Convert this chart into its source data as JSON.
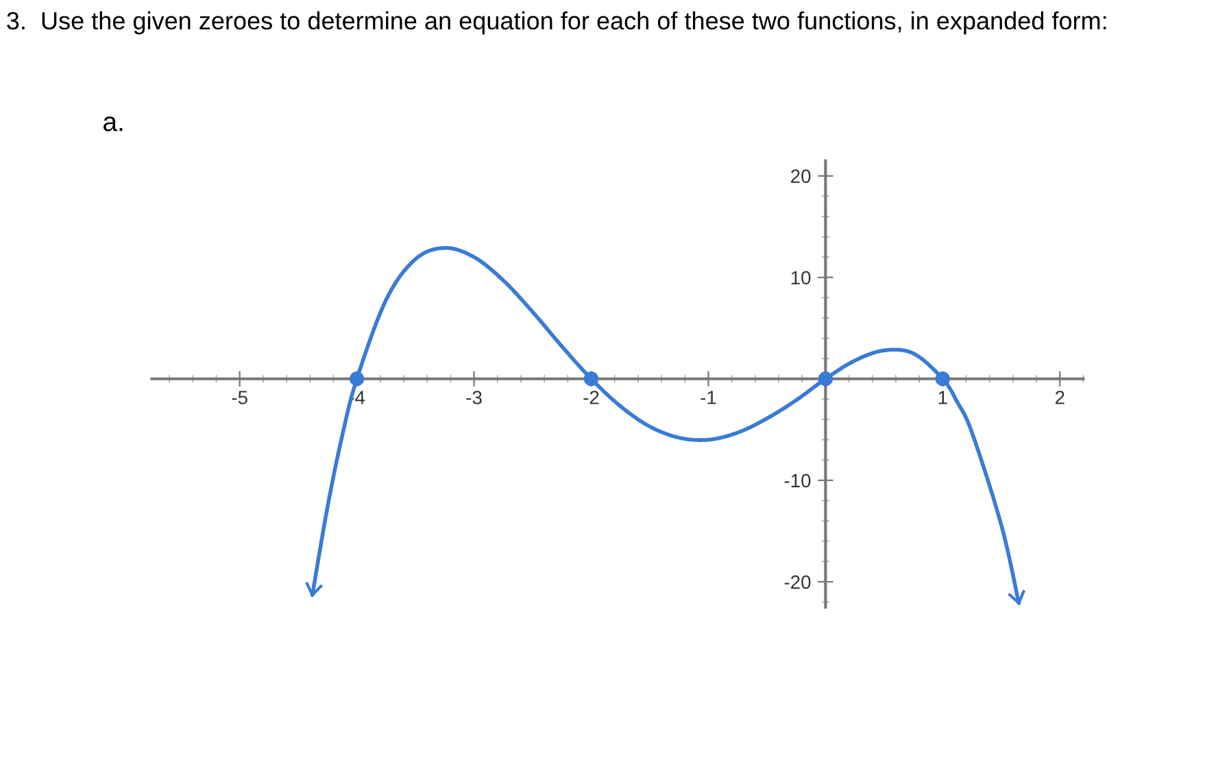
{
  "chart_data": {
    "type": "line",
    "title": "3.  Use the given zeroes to determine an equation for each of these two functions, in expanded form:",
    "annotations": [
      "a."
    ],
    "xlim": [
      -5.75,
      2.2
    ],
    "ylim": [
      -22.5,
      21.5
    ],
    "xticks": [
      -5,
      -4,
      -3,
      -2,
      -1,
      1,
      2
    ],
    "yticks": [
      -20,
      -10,
      10,
      20
    ],
    "series": [
      {
        "color": "#3a7bd5",
        "x": [
          -4.38,
          -4.25,
          -4.125,
          -4,
          -3.75,
          -3.5,
          -3.25,
          -3,
          -2.75,
          -2.5,
          -2.25,
          -2,
          -1.75,
          -1.5,
          -1.25,
          -1,
          -0.75,
          -0.5,
          -0.25,
          0,
          0.25,
          0.5,
          0.75,
          1,
          1.125,
          1.25,
          1.5,
          1.65
        ],
        "values": [
          -21.3,
          -12.6,
          -5.6,
          0,
          7.8,
          11.8,
          12.9,
          12,
          9.7,
          6.6,
          3.2,
          0,
          -2.7,
          -4.7,
          -5.8,
          -6,
          -5.3,
          -3.9,
          -2.1,
          0,
          1.8,
          2.8,
          2.5,
          0,
          -2.3,
          -5.3,
          -14.4,
          -22.1
        ]
      },
      {
        "type": "scatter",
        "color": "#3a7bd5",
        "marker": "circle",
        "x": [
          -4,
          -2,
          0,
          1
        ],
        "values": [
          0,
          0,
          0,
          0
        ]
      }
    ]
  }
}
